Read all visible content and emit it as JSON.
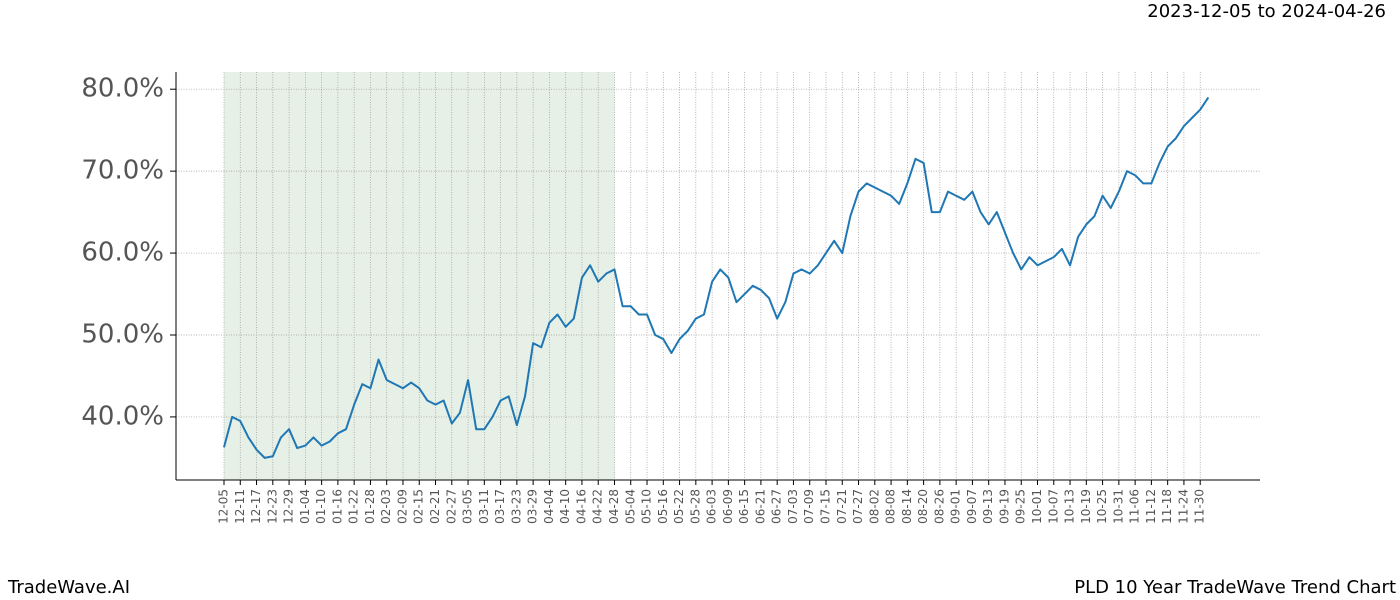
{
  "chart_data": {
    "type": "line",
    "title": "PLD 10 Year TradeWave Trend Chart",
    "date_range": "2023-12-05 to 2024-04-26",
    "brand": "TradeWave.AI",
    "categories": [
      "12-05",
      null,
      "12-11",
      null,
      "12-17",
      null,
      "12-23",
      null,
      "12-29",
      null,
      "01-04",
      null,
      "01-10",
      null,
      "01-16",
      null,
      "01-22",
      null,
      "01-28",
      null,
      "02-03",
      null,
      "02-09",
      null,
      "02-15",
      null,
      "02-21",
      null,
      "02-27",
      null,
      "03-05",
      null,
      "03-11",
      null,
      "03-17",
      null,
      "03-23",
      null,
      "03-29",
      null,
      "04-04",
      null,
      "04-10",
      null,
      "04-16",
      null,
      "04-22",
      null,
      "04-28",
      null,
      "05-04",
      null,
      "05-10",
      null,
      "05-16",
      null,
      "05-22",
      null,
      "05-28",
      null,
      "06-03",
      null,
      "06-09",
      null,
      "06-15",
      null,
      "06-21",
      null,
      "06-27",
      null,
      "07-03",
      null,
      "07-09",
      null,
      "07-15",
      null,
      "07-21",
      null,
      "07-27",
      null,
      "08-02",
      null,
      "08-08",
      null,
      "08-14",
      null,
      "08-20",
      null,
      "08-26",
      null,
      "09-01",
      null,
      "09-07",
      null,
      "09-13",
      null,
      "09-19",
      null,
      "09-25",
      null,
      "10-01",
      null,
      "10-07",
      null,
      "10-13",
      null,
      "10-19",
      null,
      "10-25",
      null,
      "10-31",
      null,
      "11-06",
      null,
      "11-12",
      null,
      "11-18",
      null,
      "11-24",
      null,
      "11-30",
      null
    ],
    "values": [
      36.3,
      40,
      39.5,
      37.5,
      36,
      35,
      35.2,
      37.5,
      38.5,
      36.2,
      36.5,
      37.5,
      36.5,
      37,
      38,
      38.5,
      41.5,
      44,
      43.5,
      47,
      44.5,
      44,
      43.5,
      44.2,
      43.5,
      42,
      41.5,
      42,
      39.2,
      40.5,
      44.5,
      38.5,
      38.5,
      40,
      42,
      42.5,
      39,
      42.5,
      49,
      48.5,
      51.5,
      52.5,
      51,
      52,
      57,
      58.5,
      56.5,
      57.5,
      58,
      53.5,
      53.5,
      52.5,
      52.5,
      50,
      49.5,
      47.8,
      49.5,
      50.5,
      52,
      52.5,
      56.5,
      58,
      57,
      54,
      55,
      56,
      55.5,
      54.5,
      52,
      54,
      57.5,
      58,
      57.5,
      58.5,
      60,
      61.5,
      60,
      64.5,
      67.5,
      68.5,
      68,
      67.5,
      67,
      66,
      68.5,
      71.5,
      71,
      65,
      65,
      67.5,
      67,
      66.5,
      67.5,
      65,
      63.5,
      65,
      62.5,
      60,
      58,
      59.5,
      58.5,
      59,
      59.5,
      60.5,
      58.5,
      62,
      63.5,
      64.5,
      67,
      65.5,
      67.5,
      70,
      69.5,
      68.5,
      68.5,
      71,
      73,
      74,
      75.5,
      76.5,
      77.5,
      79
    ],
    "color": "#1f77b4",
    "highlight": {
      "start": "12-05",
      "end": "04-28",
      "color": "#e6f0e6"
    },
    "ylim": [
      32.3,
      82.1
    ],
    "yticks": [
      {
        "value": 40,
        "label": "40.0%"
      },
      {
        "value": 50,
        "label": "50.0%"
      },
      {
        "value": 60,
        "label": "60.0%"
      },
      {
        "value": 70,
        "label": "70.0%"
      },
      {
        "value": 80,
        "label": "80.0%"
      }
    ],
    "grid": true
  }
}
